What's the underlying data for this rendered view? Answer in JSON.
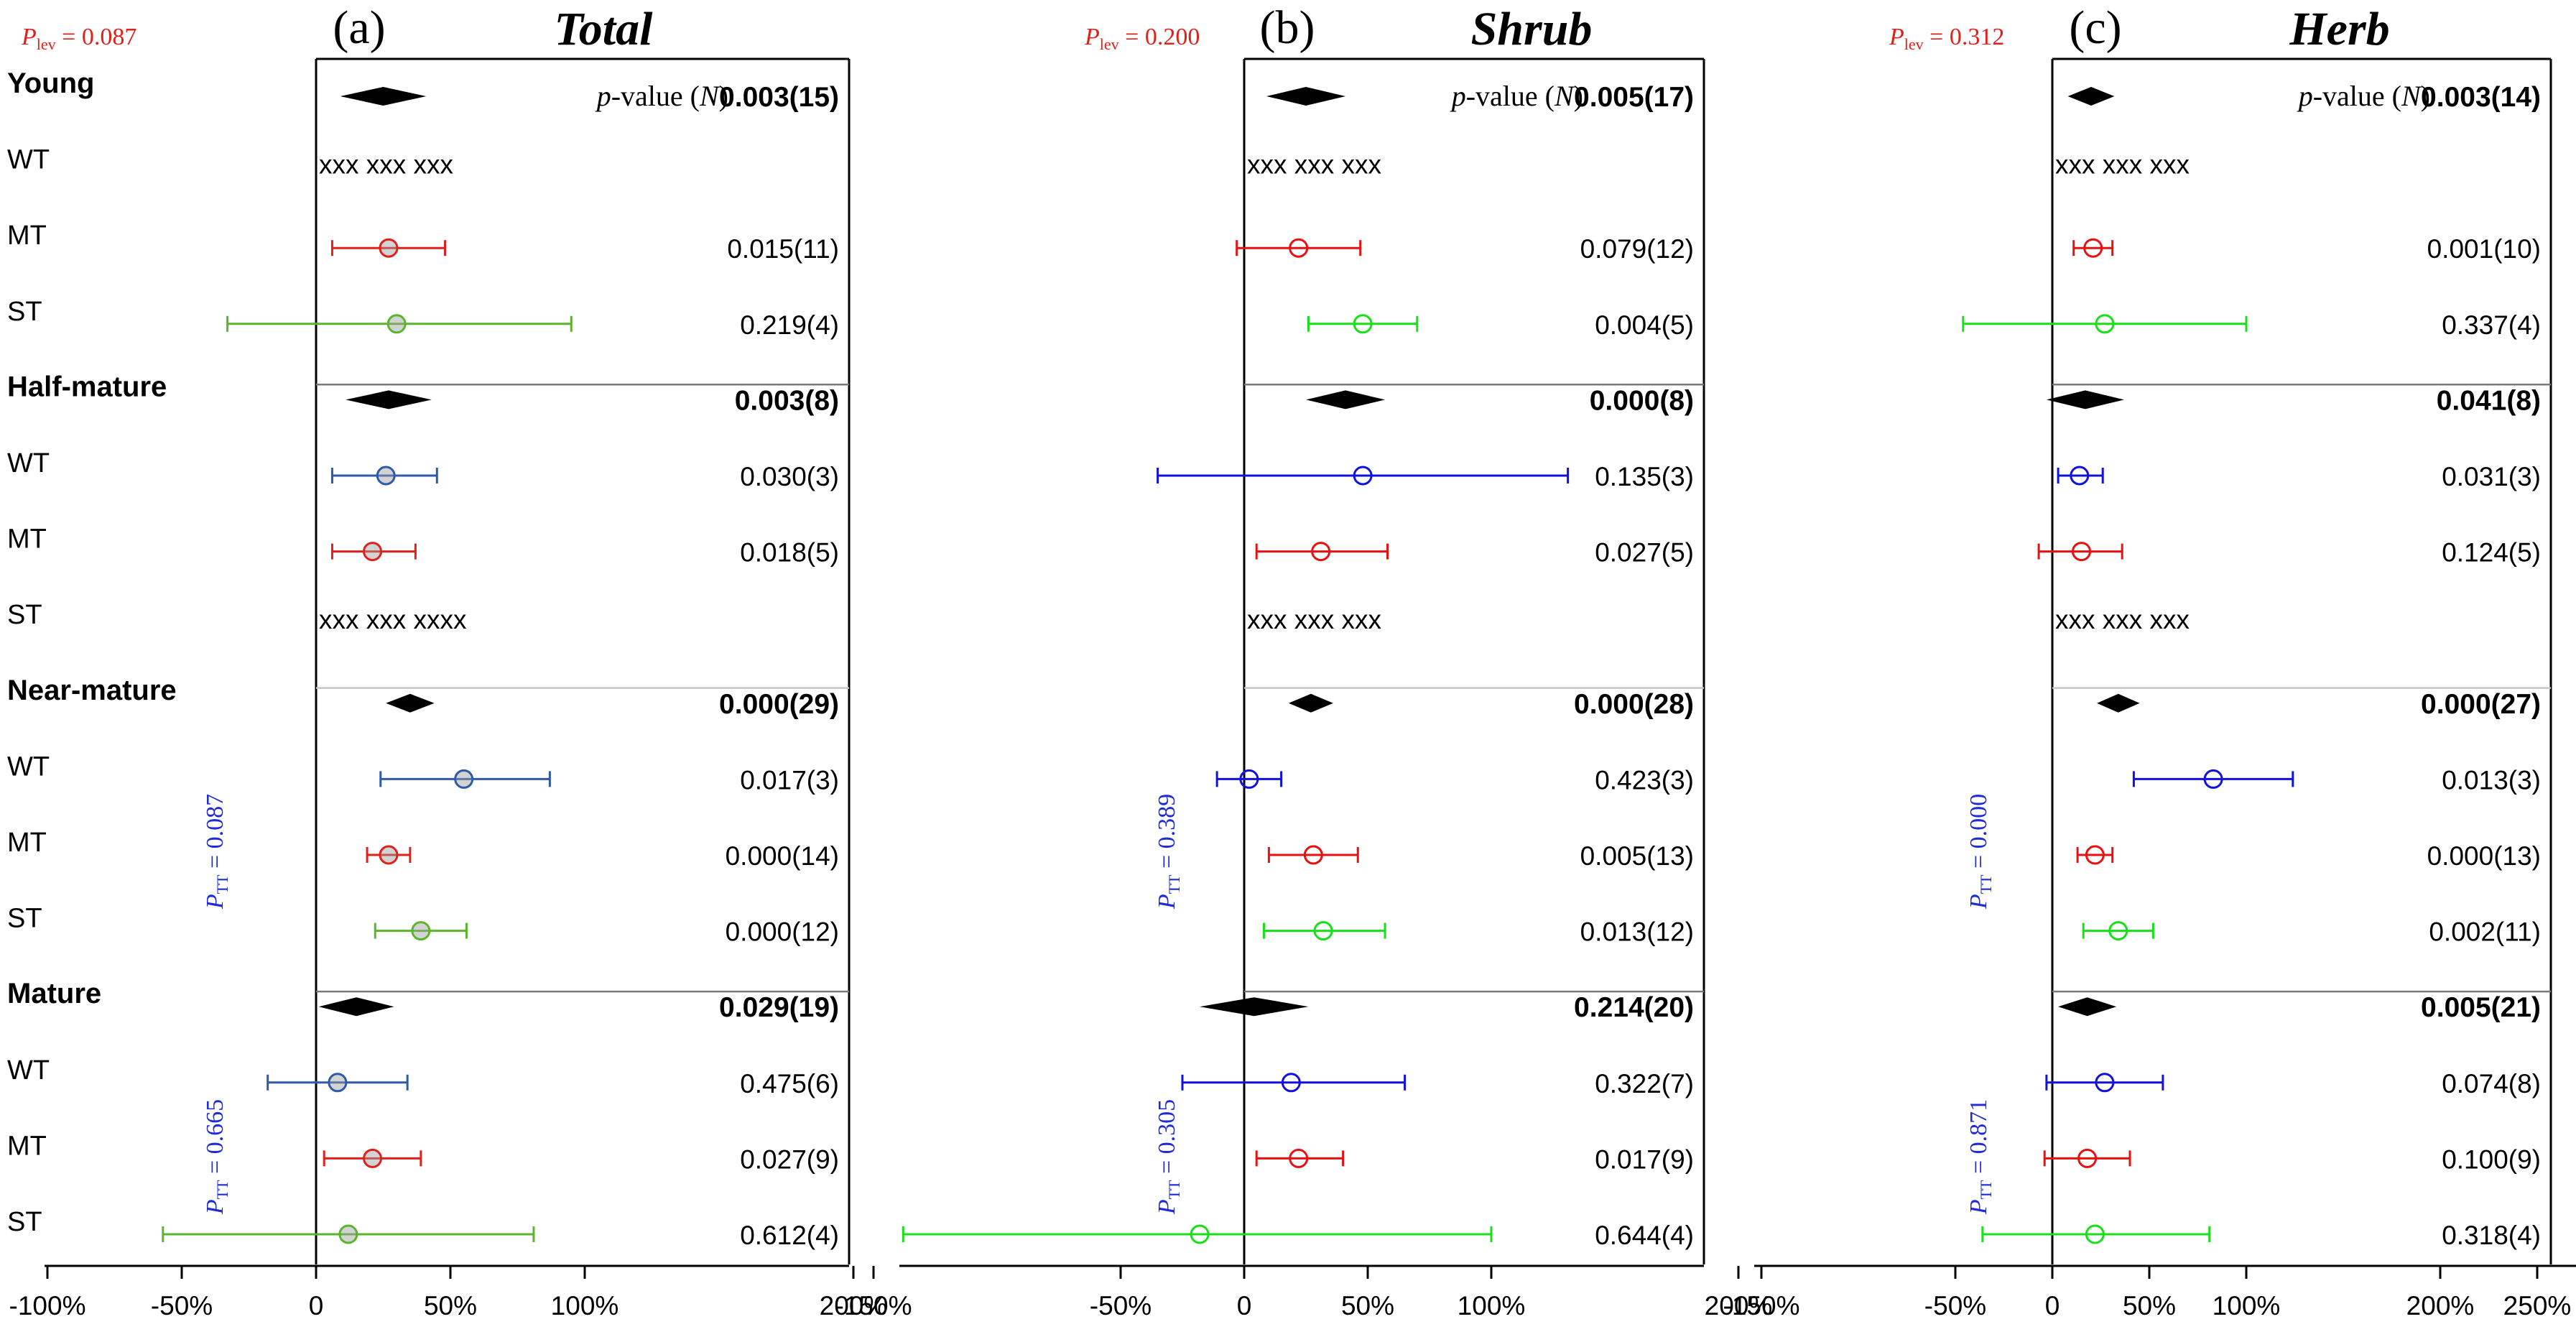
{
  "chart_data": [
    {
      "type": "forest",
      "panel_label": "(a)",
      "title": "Total",
      "p_lev_label": "P",
      "p_lev_sub": "lev",
      "p_lev_value": " = 0.087",
      "pvalue_header": "p-value (N)",
      "x_ticks": [
        "-100%",
        "-50%",
        "0",
        "50%",
        "100%",
        "200%"
      ],
      "x_tick_values": [
        -1.0,
        -0.5,
        0,
        0.5,
        1.0,
        2.0
      ],
      "xlim": [
        -1.0,
        2.0
      ],
      "wt_color": "#2e5aa8",
      "mt_color": "#e0201b",
      "st_color": "#5ab52c",
      "groups": [
        {
          "name": "Young",
          "overall": {
            "center": 0.25,
            "half_width": 0.16,
            "p": "0.003(15)"
          },
          "rows": [
            {
              "label": "WT",
              "missing": "xxx  xxx  xxx"
            },
            {
              "label": "MT",
              "est": 0.27,
              "lo": 0.06,
              "hi": 0.48,
              "p": "0.015(11)"
            },
            {
              "label": "ST",
              "est": 0.3,
              "lo": -0.33,
              "hi": 0.95,
              "p": "0.219(4)"
            }
          ]
        },
        {
          "name": "Half-mature",
          "overall": {
            "center": 0.27,
            "half_width": 0.16,
            "p": "0.003(8)"
          },
          "rows": [
            {
              "label": "WT",
              "est": 0.26,
              "lo": 0.06,
              "hi": 0.45,
              "p": "0.030(3)"
            },
            {
              "label": "MT",
              "est": 0.21,
              "lo": 0.06,
              "hi": 0.37,
              "p": "0.018(5)"
            },
            {
              "label": "ST",
              "missing": "xxx  xxx  xxxx"
            }
          ]
        },
        {
          "name": "Near-mature",
          "overall": {
            "center": 0.35,
            "half_width": 0.09,
            "p": "0.000(29)"
          },
          "rows": [
            {
              "label": "WT",
              "est": 0.55,
              "lo": 0.24,
              "hi": 0.87,
              "p": "0.017(3)"
            },
            {
              "label": "MT",
              "est": 0.27,
              "lo": 0.19,
              "hi": 0.35,
              "p": "0.000(14)"
            },
            {
              "label": "ST",
              "est": 0.39,
              "lo": 0.22,
              "hi": 0.56,
              "p": "0.000(12)"
            }
          ]
        },
        {
          "name": "Mature",
          "overall": {
            "center": 0.15,
            "half_width": 0.14,
            "p": "0.029(19)"
          },
          "rows": [
            {
              "label": "WT",
              "est": 0.08,
              "lo": -0.18,
              "hi": 0.34,
              "p": "0.475(6)"
            },
            {
              "label": "MT",
              "est": 0.21,
              "lo": 0.03,
              "hi": 0.39,
              "p": "0.027(9)"
            },
            {
              "label": "ST",
              "est": 0.12,
              "lo": -0.57,
              "hi": 0.81,
              "p": "0.612(4)"
            }
          ]
        }
      ],
      "ptt_labels": [
        {
          "label": "P",
          "sub": "TT",
          "value": " = 0.087",
          "group": 2
        },
        {
          "label": "P",
          "sub": "TT",
          "value": " = 0.665",
          "group": 3
        }
      ]
    },
    {
      "type": "forest",
      "panel_label": "(b)",
      "title": "Shrub",
      "p_lev_label": "P",
      "p_lev_sub": "lev",
      "p_lev_value": " = 0.200",
      "pvalue_header": "p-value (N)",
      "x_ticks": [
        "-150%",
        "-50%",
        "0",
        "50%",
        "100%",
        "200%"
      ],
      "x_tick_values": [
        -1.5,
        -0.5,
        0,
        0.5,
        1.0,
        2.0
      ],
      "xlim": [
        -1.5,
        2.0
      ],
      "wt_color": "#1010e0",
      "mt_color": "#e81010",
      "st_color": "#18e018",
      "groups": [
        {
          "name": "Young",
          "overall": {
            "center": 0.25,
            "half_width": 0.16,
            "p": "0.005(17)"
          },
          "rows": [
            {
              "label": "WT",
              "missing": "xxx  xxx  xxx"
            },
            {
              "label": "MT",
              "est": 0.22,
              "lo": -0.03,
              "hi": 0.47,
              "p": "0.079(12)"
            },
            {
              "label": "ST",
              "est": 0.48,
              "lo": 0.26,
              "hi": 0.7,
              "p": "0.004(5)"
            }
          ]
        },
        {
          "name": "Half-mature",
          "overall": {
            "center": 0.41,
            "half_width": 0.16,
            "p": "0.000(8)"
          },
          "rows": [
            {
              "label": "WT",
              "est": 0.48,
              "lo": -0.35,
              "hi": 1.31,
              "p": "0.135(3)"
            },
            {
              "label": "MT",
              "est": 0.31,
              "lo": 0.05,
              "hi": 0.58,
              "p": "0.027(5)"
            },
            {
              "label": "ST",
              "missing": "xxx  xxx  xxx"
            }
          ]
        },
        {
          "name": "Near-mature",
          "overall": {
            "center": 0.27,
            "half_width": 0.09,
            "p": "0.000(28)"
          },
          "rows": [
            {
              "label": "WT",
              "est": 0.02,
              "lo": -0.11,
              "hi": 0.15,
              "p": "0.423(3)"
            },
            {
              "label": "MT",
              "est": 0.28,
              "lo": 0.1,
              "hi": 0.46,
              "p": "0.005(13)"
            },
            {
              "label": "ST",
              "est": 0.32,
              "lo": 0.08,
              "hi": 0.57,
              "p": "0.013(12)"
            }
          ]
        },
        {
          "name": "Mature",
          "overall": {
            "center": 0.04,
            "half_width": 0.22,
            "p": "0.214(20)"
          },
          "rows": [
            {
              "label": "WT",
              "est": 0.19,
              "lo": -0.25,
              "hi": 0.65,
              "p": "0.322(7)"
            },
            {
              "label": "MT",
              "est": 0.22,
              "lo": 0.05,
              "hi": 0.4,
              "p": "0.017(9)"
            },
            {
              "label": "ST",
              "est": -0.18,
              "lo": -1.38,
              "hi": 1.0,
              "p": "0.644(4)"
            }
          ]
        }
      ],
      "ptt_labels": [
        {
          "label": "P",
          "sub": "TT",
          "value": " = 0.389",
          "group": 2
        },
        {
          "label": "P",
          "sub": "TT",
          "value": " = 0.305",
          "group": 3
        }
      ]
    },
    {
      "type": "forest",
      "panel_label": "(c)",
      "title": "Herb",
      "p_lev_label": "P",
      "p_lev_sub": "lev",
      "p_lev_value": " = 0.312",
      "pvalue_header": "p-value (N)",
      "x_ticks": [
        "-150%",
        "-50%",
        "0",
        "50%",
        "100%",
        "200%",
        "250%"
      ],
      "x_tick_values": [
        -1.5,
        -0.5,
        0,
        0.5,
        1.0,
        2.0,
        2.5
      ],
      "xlim": [
        -1.5,
        2.5
      ],
      "wt_color": "#1010e0",
      "mt_color": "#e81010",
      "st_color": "#18e018",
      "groups": [
        {
          "name": "Young",
          "overall": {
            "center": 0.2,
            "half_width": 0.12,
            "p": "0.003(14)"
          },
          "rows": [
            {
              "label": "WT",
              "missing": "xxx  xxx  xxx"
            },
            {
              "label": "MT",
              "est": 0.21,
              "lo": 0.11,
              "hi": 0.31,
              "p": "0.001(10)"
            },
            {
              "label": "ST",
              "est": 0.27,
              "lo": -0.46,
              "hi": 1.0,
              "p": "0.337(4)"
            }
          ]
        },
        {
          "name": "Half-mature",
          "overall": {
            "center": 0.17,
            "half_width": 0.2,
            "p": "0.041(8)"
          },
          "rows": [
            {
              "label": "WT",
              "est": 0.14,
              "lo": 0.03,
              "hi": 0.26,
              "p": "0.031(3)"
            },
            {
              "label": "MT",
              "est": 0.15,
              "lo": -0.07,
              "hi": 0.36,
              "p": "0.124(5)"
            },
            {
              "label": "ST",
              "missing": "xxx  xxx  xxx"
            }
          ]
        },
        {
          "name": "Near-mature",
          "overall": {
            "center": 0.34,
            "half_width": 0.11,
            "p": "0.000(27)"
          },
          "rows": [
            {
              "label": "WT",
              "est": 0.83,
              "lo": 0.42,
              "hi": 1.24,
              "p": "0.013(3)"
            },
            {
              "label": "MT",
              "est": 0.22,
              "lo": 0.13,
              "hi": 0.31,
              "p": "0.000(13)"
            },
            {
              "label": "ST",
              "est": 0.34,
              "lo": 0.16,
              "hi": 0.52,
              "p": "0.002(11)"
            }
          ]
        },
        {
          "name": "Mature",
          "overall": {
            "center": 0.18,
            "half_width": 0.15,
            "p": "0.005(21)"
          },
          "rows": [
            {
              "label": "WT",
              "est": 0.27,
              "lo": -0.03,
              "hi": 0.57,
              "p": "0.074(8)"
            },
            {
              "label": "MT",
              "est": 0.18,
              "lo": -0.04,
              "hi": 0.4,
              "p": "0.100(9)"
            },
            {
              "label": "ST",
              "est": 0.22,
              "lo": -0.36,
              "hi": 0.81,
              "p": "0.318(4)"
            }
          ]
        }
      ],
      "ptt_labels": [
        {
          "label": "P",
          "sub": "TT",
          "value": " = 0.000",
          "group": 2
        },
        {
          "label": "P",
          "sub": "TT",
          "value": " = 0.871",
          "group": 3
        }
      ]
    }
  ]
}
